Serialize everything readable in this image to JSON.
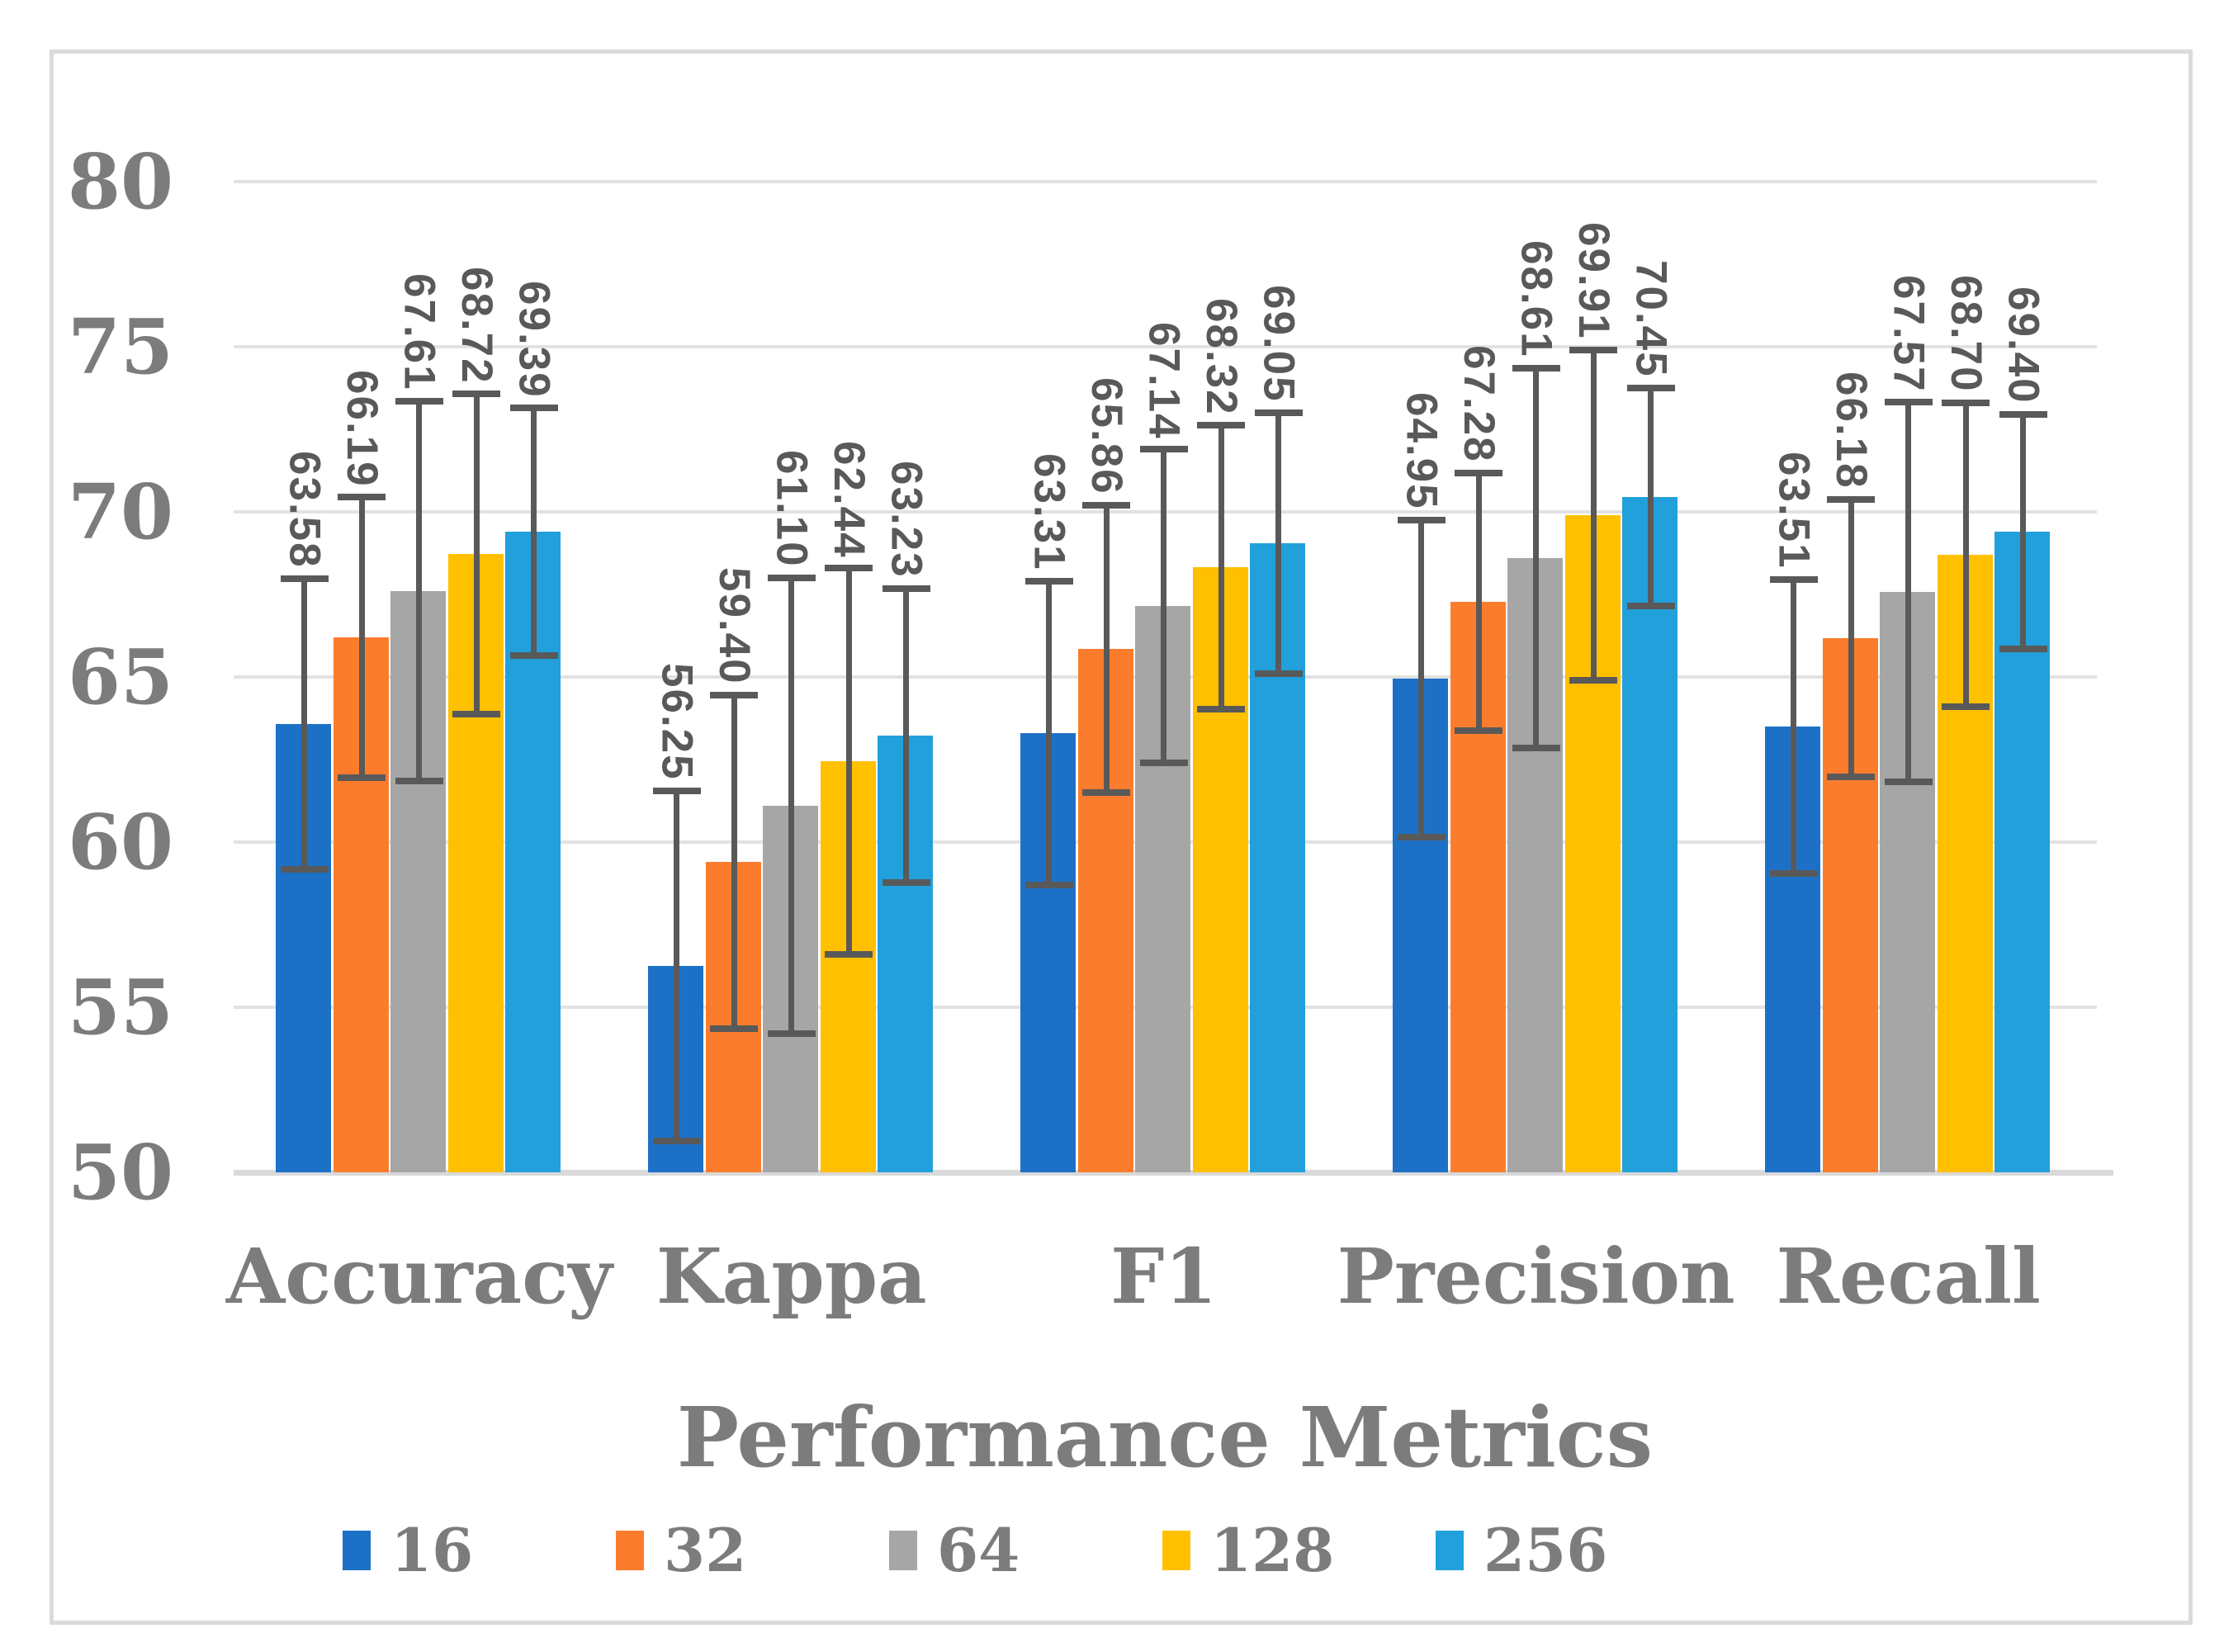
{
  "chart_data": {
    "type": "bar",
    "title": "",
    "xlabel": "Performance Metrics",
    "ylabel": "",
    "categories": [
      "Accuracy",
      "Kappa",
      "F1",
      "Precision",
      "Recall"
    ],
    "series": [
      {
        "name": "16",
        "color": "#1C71C7",
        "values": [
          63.58,
          56.25,
          63.31,
          64.95,
          63.51
        ],
        "errors": [
          4.4,
          5.3,
          4.6,
          4.8,
          4.45
        ]
      },
      {
        "name": "32",
        "color": "#FC7C2D",
        "values": [
          66.19,
          59.4,
          65.86,
          67.28,
          66.18
        ],
        "errors": [
          4.25,
          5.05,
          4.35,
          3.9,
          4.2
        ]
      },
      {
        "name": "64",
        "color": "#A6A6A6",
        "values": [
          67.61,
          61.1,
          67.14,
          68.61,
          67.57
        ],
        "errors": [
          5.75,
          6.9,
          4.75,
          5.75,
          5.75
        ]
      },
      {
        "name": "128",
        "color": "#FFC000",
        "values": [
          68.72,
          62.44,
          68.32,
          69.91,
          68.7
        ],
        "errors": [
          4.85,
          5.85,
          4.3,
          5.0,
          4.6
        ]
      },
      {
        "name": "256",
        "color": "#22A0DB",
        "values": [
          69.39,
          63.23,
          69.05,
          70.45,
          69.4
        ],
        "errors": [
          3.75,
          4.45,
          3.95,
          3.3,
          3.55
        ]
      }
    ],
    "y_ticks": [
      80,
      75,
      70,
      65,
      60,
      55,
      50
    ],
    "ylim": [
      50,
      80
    ],
    "grid": true,
    "legend_position": "bottom",
    "value_label_decimals": 2
  },
  "colors": {
    "axis_text": "#7C7C7C",
    "data_label_text": "#595959",
    "error_bar": "#595959",
    "gridline": "#E2E2E2",
    "axis_line": "#D9D9D9",
    "frame_border": "#DBDBDB",
    "background": "#FFFFFF"
  }
}
